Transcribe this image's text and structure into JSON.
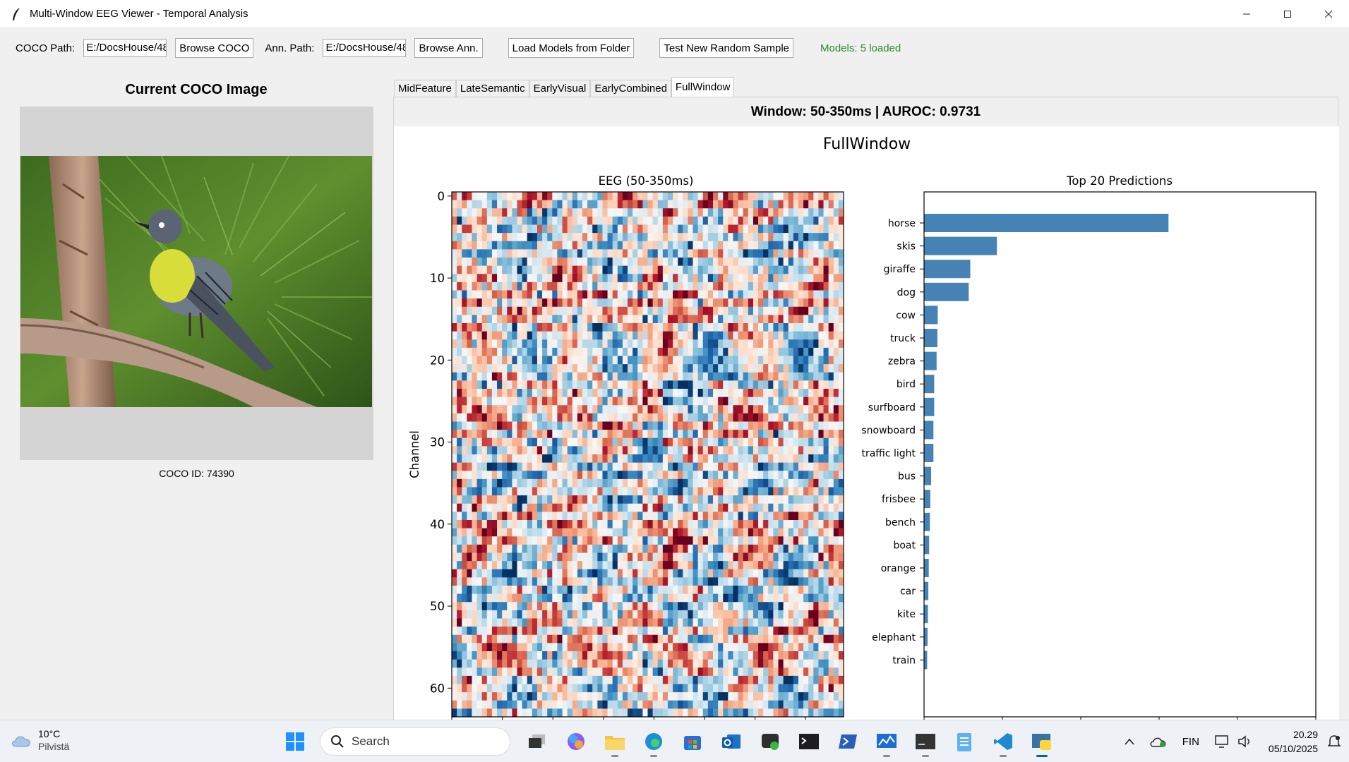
{
  "window": {
    "title": "Multi-Window EEG Viewer - Temporal Analysis"
  },
  "toolbar": {
    "coco_path_label": "COCO Path:",
    "coco_path_value": "E:/DocsHouse/48",
    "browse_coco_label": "Browse COCO",
    "ann_path_label": "Ann. Path:",
    "ann_path_value": "E:/DocsHouse/48",
    "browse_ann_label": "Browse Ann.",
    "load_models_label": "Load Models from Folder",
    "test_sample_label": "Test New Random Sample",
    "status": "Models: 5 loaded",
    "status_color": "#2e8b2e"
  },
  "left_panel": {
    "title": "Current COCO Image",
    "coco_id": "COCO ID: 74390"
  },
  "tabs": [
    {
      "label": "MidFeature",
      "active": false
    },
    {
      "label": "LateSemantic",
      "active": false
    },
    {
      "label": "EarlyVisual",
      "active": false
    },
    {
      "label": "EarlyCombined",
      "active": false
    },
    {
      "label": "FullWindow",
      "active": true
    }
  ],
  "panel": {
    "window_label": "Window: 50-350ms | AUROC: 0.9731"
  },
  "chart_data": [
    {
      "type": "heatmap",
      "suptitle": "FullWindow",
      "title": "EEG (50-350ms)",
      "xlabel": "",
      "ylabel": "Channel",
      "xlim": [
        0,
        155
      ],
      "ylim": [
        0,
        63
      ],
      "x_ticks": [
        0,
        20,
        40,
        60,
        80,
        100,
        120,
        140
      ],
      "y_ticks": [
        0,
        10,
        20,
        30,
        40,
        50,
        60
      ],
      "colormap": "RdBu_r"
    },
    {
      "type": "bar",
      "orientation": "horizontal",
      "title": "Top 20 Predictions",
      "xlim": [
        0,
        1.0
      ],
      "x_ticks": [
        "0.0",
        "0.2",
        "0.4",
        "0.6",
        "0.8",
        "1.0"
      ],
      "bar_color": "#4682b4",
      "categories": [
        "horse",
        "skis",
        "giraffe",
        "dog",
        "cow",
        "truck",
        "zebra",
        "bird",
        "surfboard",
        "snowboard",
        "traffic light",
        "bus",
        "frisbee",
        "bench",
        "boat",
        "orange",
        "car",
        "kite",
        "elephant",
        "train"
      ],
      "values": [
        0.624,
        0.186,
        0.118,
        0.114,
        0.035,
        0.034,
        0.032,
        0.026,
        0.026,
        0.024,
        0.024,
        0.018,
        0.016,
        0.015,
        0.013,
        0.012,
        0.011,
        0.01,
        0.009,
        0.008
      ]
    }
  ],
  "taskbar": {
    "weather_temp": "10°C",
    "weather_desc": "Pilvistä",
    "search_placeholder": "Search",
    "language": "FIN",
    "time": "20.29",
    "date": "05/10/2025"
  }
}
